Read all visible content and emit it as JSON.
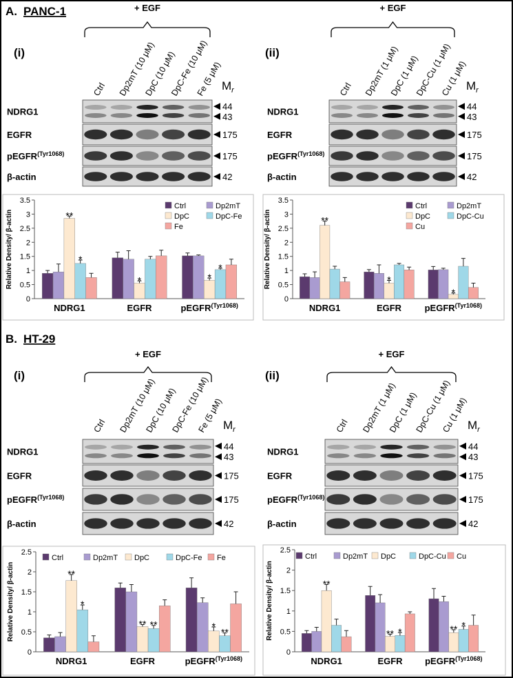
{
  "figure": {
    "panels": [
      {
        "letter": "A.",
        "name": "PANC-1",
        "subpanels": [
          {
            "label": "(i)",
            "treatment": "+ EGF",
            "lanes": [
              "Ctrl",
              "Dp2mT (10 μM)",
              "DpC (10 μM)",
              "DpC-Fe (10 μM)",
              "Fe (5 μM)"
            ],
            "mr": {
              "main": "M",
              "sub": "r"
            },
            "rows": [
              {
                "label": "NDRG1",
                "markers": [
                  "44",
                  "43"
                ]
              },
              {
                "label": "EGFR",
                "markers": [
                  "175"
                ]
              },
              {
                "label": "pEGFR(Tyr1068)",
                "markers": [
                  "175"
                ]
              },
              {
                "label": "β-actin",
                "markers": [
                  "42"
                ]
              }
            ]
          },
          {
            "label": "(ii)",
            "treatment": "+ EGF",
            "lanes": [
              "Ctrl",
              "Dp2mT (1 μM)",
              "DpC (1 μM)",
              "DpC-Cu (1 μM)",
              "Cu (1 μM)"
            ],
            "mr": {
              "main": "M",
              "sub": "r"
            },
            "rows": [
              {
                "label": "NDRG1",
                "markers": [
                  "44",
                  "43"
                ]
              },
              {
                "label": "EGFR",
                "markers": [
                  "175"
                ]
              },
              {
                "label": "pEGFR(Tyr1068)",
                "markers": [
                  "175"
                ]
              },
              {
                "label": "β-actin",
                "markers": [
                  "42"
                ]
              }
            ]
          }
        ]
      },
      {
        "letter": "B.",
        "name": "HT-29",
        "subpanels": [
          {
            "label": "(i)",
            "treatment": "+ EGF",
            "lanes": [
              "Ctrl",
              "Dp2mT (10 μM)",
              "DpC (10 μM)",
              "DpC-Fe (10 μM)",
              "Fe (5 μM)"
            ],
            "mr": {
              "main": "M",
              "sub": "r"
            },
            "rows": [
              {
                "label": "NDRG1",
                "markers": [
                  "44",
                  "43"
                ]
              },
              {
                "label": "EGFR",
                "markers": [
                  "175"
                ]
              },
              {
                "label": "pEGFR(Tyr1068)",
                "markers": [
                  "175"
                ]
              },
              {
                "label": "β-actin",
                "markers": [
                  "42"
                ]
              }
            ]
          },
          {
            "label": "(ii)",
            "treatment": "+ EGF",
            "lanes": [
              "Ctrl",
              "Dp2mT (1 μM)",
              "DpC (1 μM)",
              "DpC-Cu (1 μM)",
              "Cu (1 μM)"
            ],
            "mr": {
              "main": "M",
              "sub": "r"
            },
            "rows": [
              {
                "label": "NDRG1",
                "markers": [
                  "44",
                  "43"
                ]
              },
              {
                "label": "EGFR",
                "markers": [
                  "175"
                ]
              },
              {
                "label": "pEGFR(Tyr1068)",
                "markers": [
                  "175"
                ]
              },
              {
                "label": "β-actin",
                "markers": [
                  "42"
                ]
              }
            ]
          }
        ]
      }
    ]
  },
  "chart_data": [
    {
      "type": "bar",
      "ylabel": "Relative Density/ β-actin",
      "categories": [
        "NDRG1",
        "EGFR",
        "pEGFR(Tyr1068)"
      ],
      "ylim": [
        0,
        3.5
      ],
      "yticks": [
        0,
        0.5,
        1,
        1.5,
        2,
        2.5,
        3,
        3.5
      ],
      "legend": "upper right",
      "legend_columns": 2,
      "series": [
        {
          "name": "Ctrl",
          "color": "#5b3a6e",
          "values": [
            0.9,
            1.45,
            1.52
          ],
          "errors": [
            0.1,
            0.2,
            0.1
          ],
          "significance": [
            null,
            null,
            null
          ]
        },
        {
          "name": "Dp2mT",
          "color": "#a99bd0",
          "values": [
            0.95,
            1.4,
            1.52
          ],
          "errors": [
            0.28,
            0.3,
            0.03
          ],
          "significance": [
            null,
            null,
            null
          ]
        },
        {
          "name": "DpC",
          "color": "#fde9d0",
          "values": [
            2.85,
            0.55,
            0.65
          ],
          "errors": [
            0.08,
            0.08,
            0.08
          ],
          "significance": [
            "**",
            "*",
            "*"
          ]
        },
        {
          "name": "DpC-Fe",
          "color": "#9fd8e8",
          "values": [
            1.25,
            1.4,
            1.03
          ],
          "errors": [
            0.12,
            0.1,
            0.05
          ],
          "significance": [
            "*",
            null,
            "*"
          ]
        },
        {
          "name": "Fe",
          "color": "#f4a6a0",
          "values": [
            0.75,
            1.52,
            1.2
          ],
          "errors": [
            0.15,
            0.2,
            0.2
          ],
          "significance": [
            null,
            null,
            null
          ]
        }
      ]
    },
    {
      "type": "bar",
      "ylabel": "Relative Density/ β-actin",
      "categories": [
        "NDRG1",
        "EGFR",
        "pEGFR(Tyr1068)"
      ],
      "ylim": [
        0,
        3.5
      ],
      "yticks": [
        0,
        0.5,
        1,
        1.5,
        2,
        2.5,
        3,
        3.5
      ],
      "legend": "upper right",
      "legend_columns": 2,
      "series": [
        {
          "name": "Ctrl",
          "color": "#5b3a6e",
          "values": [
            0.78,
            0.95,
            1.02
          ],
          "errors": [
            0.1,
            0.08,
            0.12
          ],
          "significance": [
            null,
            null,
            null
          ]
        },
        {
          "name": "Dp2mT",
          "color": "#a99bd0",
          "values": [
            0.75,
            0.9,
            1.03
          ],
          "errors": [
            0.2,
            0.3,
            0.05
          ],
          "significance": [
            null,
            null,
            null
          ]
        },
        {
          "name": "DpC",
          "color": "#fde9d0",
          "values": [
            2.6,
            0.55,
            0.15
          ],
          "errors": [
            0.15,
            0.1,
            0.05
          ],
          "significance": [
            "**",
            "*",
            "*"
          ]
        },
        {
          "name": "DpC-Cu",
          "color": "#9fd8e8",
          "values": [
            1.05,
            1.2,
            1.15
          ],
          "errors": [
            0.1,
            0.05,
            0.28
          ],
          "significance": [
            null,
            null,
            null
          ]
        },
        {
          "name": "Cu",
          "color": "#f4a6a0",
          "values": [
            0.6,
            1.02,
            0.4
          ],
          "errors": [
            0.15,
            0.1,
            0.15
          ],
          "significance": [
            null,
            null,
            null
          ]
        }
      ]
    },
    {
      "type": "bar",
      "ylabel": "Relative Density/ β-actin",
      "categories": [
        "NDRG1",
        "EGFR",
        "pEGFR(Tyr1068)"
      ],
      "ylim": [
        0,
        2.5
      ],
      "yticks": [
        0,
        0.5,
        1,
        1.5,
        2,
        2.5
      ],
      "legend": "top",
      "legend_columns": 5,
      "series": [
        {
          "name": "Ctrl",
          "color": "#5b3a6e",
          "values": [
            0.35,
            1.6,
            1.6
          ],
          "errors": [
            0.07,
            0.12,
            0.25
          ],
          "significance": [
            null,
            null,
            null
          ]
        },
        {
          "name": "Dp2mT",
          "color": "#a99bd0",
          "values": [
            0.38,
            1.5,
            1.23
          ],
          "errors": [
            0.1,
            0.18,
            0.12
          ],
          "significance": [
            null,
            null,
            null
          ]
        },
        {
          "name": "DpC",
          "color": "#fde9d0",
          "values": [
            1.78,
            0.63,
            0.52
          ],
          "errors": [
            0.15,
            0.05,
            0.1
          ],
          "significance": [
            "**",
            "**",
            "*"
          ]
        },
        {
          "name": "DpC-Fe",
          "color": "#9fd8e8",
          "values": [
            1.05,
            0.58,
            0.4
          ],
          "errors": [
            0.12,
            0.08,
            0.07
          ],
          "significance": [
            "*",
            "**",
            "**"
          ]
        },
        {
          "name": "Fe",
          "color": "#f4a6a0",
          "values": [
            0.25,
            1.15,
            1.2
          ],
          "errors": [
            0.15,
            0.15,
            0.3
          ],
          "significance": [
            null,
            null,
            null
          ]
        }
      ]
    },
    {
      "type": "bar",
      "ylabel": "Relative Density/ β-actin",
      "categories": [
        "NDRG1",
        "EGFR",
        "pEGFR(Tyr1068)"
      ],
      "ylim": [
        0,
        2.5
      ],
      "yticks": [
        0,
        0.5,
        1,
        1.5,
        2,
        2.5
      ],
      "legend": "top",
      "legend_columns": 5,
      "series": [
        {
          "name": "Ctrl",
          "color": "#5b3a6e",
          "values": [
            0.45,
            1.38,
            1.3
          ],
          "errors": [
            0.07,
            0.22,
            0.25
          ],
          "significance": [
            null,
            null,
            null
          ]
        },
        {
          "name": "Dp2mT",
          "color": "#a99bd0",
          "values": [
            0.5,
            1.2,
            1.23
          ],
          "errors": [
            0.1,
            0.2,
            0.13
          ],
          "significance": [
            null,
            null,
            null
          ]
        },
        {
          "name": "DpC",
          "color": "#fde9d0",
          "values": [
            1.5,
            0.38,
            0.47
          ],
          "errors": [
            0.15,
            0.05,
            0.07
          ],
          "significance": [
            "**",
            "**",
            "**"
          ]
        },
        {
          "name": "DpC-Cu",
          "color": "#9fd8e8",
          "values": [
            0.65,
            0.4,
            0.55
          ],
          "errors": [
            0.15,
            0.07,
            0.08
          ],
          "significance": [
            null,
            "*",
            "*"
          ]
        },
        {
          "name": "Cu",
          "color": "#f4a6a0",
          "values": [
            0.37,
            0.93,
            0.65
          ],
          "errors": [
            0.15,
            0.05,
            0.25
          ],
          "significance": [
            null,
            null,
            null
          ]
        }
      ]
    }
  ]
}
